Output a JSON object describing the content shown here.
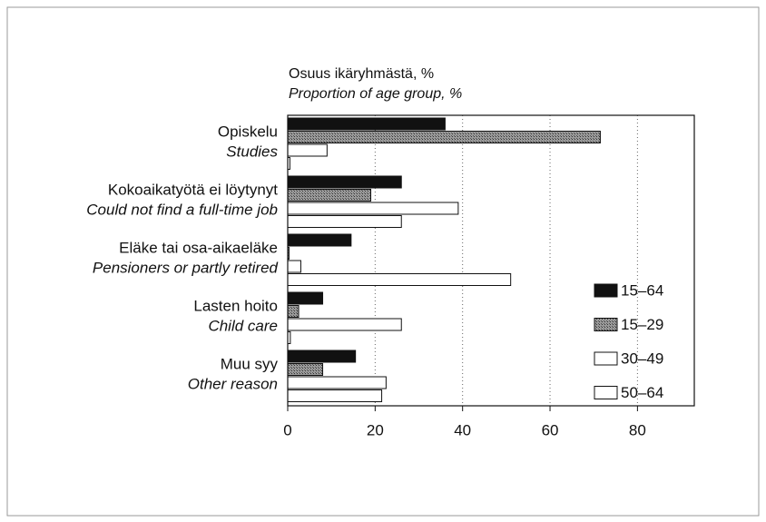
{
  "chart_data": {
    "type": "hbar",
    "title": "Osuus ikäryhmästä, %",
    "subtitle": "Proportion of age group, %",
    "categories": [
      "Opiskelu",
      "Kokoaikatyötä ei löytynyt",
      "Eläke tai osa-aikaeläke",
      "Lasten hoito",
      "Muu syy"
    ],
    "categories_en": [
      "Studies",
      "Could not find a full-time job",
      "Pensioners or partly retired",
      "Child care",
      "Other reason"
    ],
    "series": [
      {
        "name": "15–64",
        "color": "#111111",
        "values": [
          36,
          26,
          14.5,
          8,
          15.5
        ]
      },
      {
        "name": "15–29",
        "color": "#7a7a7a",
        "values": [
          71.5,
          19,
          0.3,
          2.5,
          8
        ]
      },
      {
        "name": "30–49",
        "color": "#ffffff",
        "values": [
          9,
          39,
          3,
          26,
          22.5
        ]
      },
      {
        "name": "50–64",
        "color": "#ffffff",
        "values": [
          0.5,
          26,
          51,
          0.6,
          21.5
        ]
      }
    ],
    "xlim": [
      0,
      93
    ],
    "xticks": [
      0,
      20,
      40,
      60,
      80
    ],
    "grid": true,
    "legend": "lower right"
  }
}
